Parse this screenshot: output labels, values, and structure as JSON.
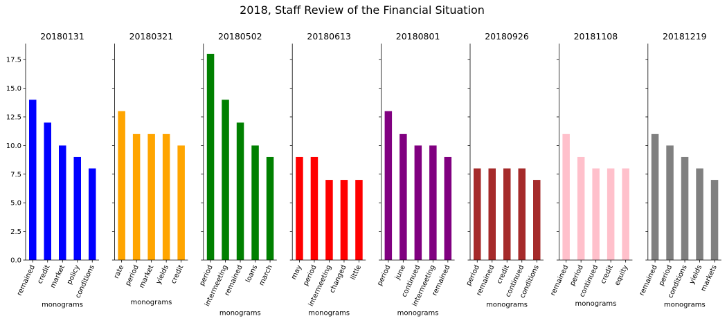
{
  "chart_data": {
    "type": "bar",
    "title": "2018, Staff Review of the Financial Situation",
    "ylim": [
      0,
      18.9
    ],
    "yticks": [
      0.0,
      2.5,
      5.0,
      7.5,
      10.0,
      12.5,
      15.0,
      17.5
    ],
    "ytick_labels": [
      "0.0",
      "2.5",
      "5.0",
      "7.5",
      "10.0",
      "12.5",
      "15.0",
      "17.5"
    ],
    "shared_y": true,
    "grid": false,
    "legend": "none",
    "panels": [
      {
        "title": "20180131",
        "xlabel": "monograms",
        "color": "#0000ff",
        "categories": [
          "remained",
          "credit",
          "market",
          "policy",
          "conditions"
        ],
        "values": [
          14,
          12,
          10,
          9,
          8
        ]
      },
      {
        "title": "20180321",
        "xlabel": "monograms",
        "color": "#ffa500",
        "categories": [
          "rate",
          "period",
          "market",
          "yields",
          "credit"
        ],
        "values": [
          13,
          11,
          11,
          11,
          10
        ]
      },
      {
        "title": "20180502",
        "xlabel": "monograms",
        "color": "#008000",
        "categories": [
          "period",
          "intermeeting",
          "remained",
          "loans",
          "march"
        ],
        "values": [
          18,
          14,
          12,
          10,
          9
        ]
      },
      {
        "title": "20180613",
        "xlabel": "monograms",
        "color": "#ff0000",
        "categories": [
          "may",
          "period",
          "intermeeting",
          "changed",
          "little"
        ],
        "values": [
          9,
          9,
          7,
          7,
          7
        ]
      },
      {
        "title": "20180801",
        "xlabel": "monograms",
        "color": "#800080",
        "categories": [
          "period",
          "june",
          "continued",
          "intermeeting",
          "remained"
        ],
        "values": [
          13,
          11,
          10,
          10,
          9
        ]
      },
      {
        "title": "20180926",
        "xlabel": "monograms",
        "color": "#a52a2a",
        "categories": [
          "period",
          "remained",
          "credit",
          "continued",
          "conditions"
        ],
        "values": [
          8,
          8,
          8,
          8,
          7
        ]
      },
      {
        "title": "20181108",
        "xlabel": "monograms",
        "color": "#ffc0cb",
        "categories": [
          "remained",
          "period",
          "continued",
          "credit",
          "equity"
        ],
        "values": [
          11,
          9,
          8,
          8,
          8
        ]
      },
      {
        "title": "20181219",
        "xlabel": "monograms",
        "color": "#808080",
        "categories": [
          "remained",
          "period",
          "conditions",
          "yields",
          "markets"
        ],
        "values": [
          11,
          10,
          9,
          8,
          7
        ]
      }
    ]
  }
}
